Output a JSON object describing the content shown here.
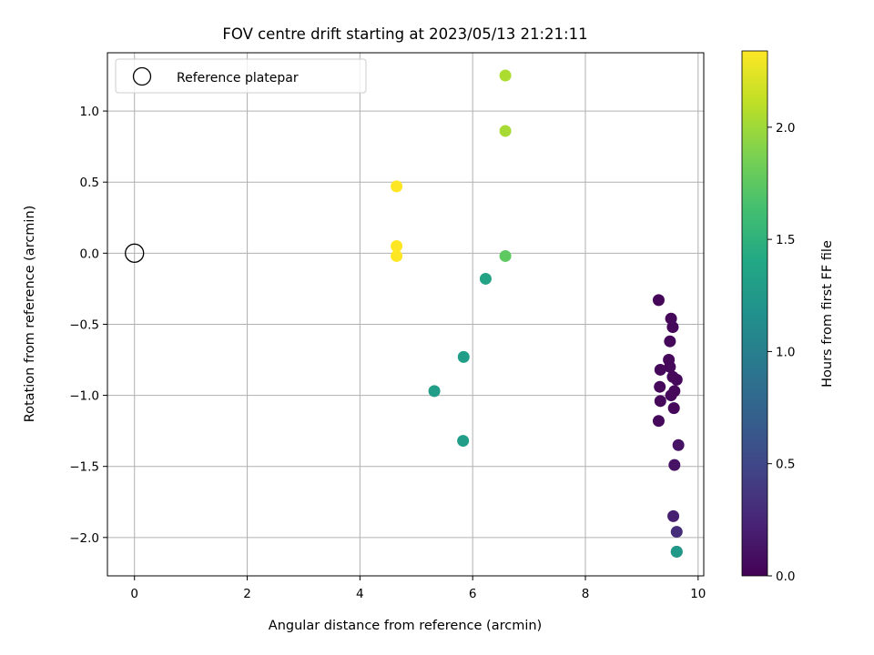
{
  "chart_data": {
    "type": "scatter",
    "title": "FOV centre drift starting at 2023/05/13 21:21:11",
    "xlabel": "Angular distance from reference (arcmin)",
    "ylabel": "Rotation from reference (arcmin)",
    "xlim": [
      -0.48,
      10.1
    ],
    "ylim": [
      -2.27,
      1.41
    ],
    "xticks": [
      0,
      2,
      4,
      6,
      8,
      10
    ],
    "xtick_labels": [
      "0",
      "2",
      "4",
      "6",
      "8",
      "10"
    ],
    "yticks": [
      1.0,
      0.5,
      0.0,
      -0.5,
      -1.0,
      -1.5,
      -2.0
    ],
    "ytick_labels": [
      "1.0",
      "0.5",
      "0.0",
      "−0.5",
      "−1.0",
      "−1.5",
      "−2.0"
    ],
    "grid": true,
    "legend": {
      "position": "top-left",
      "entries": [
        "Reference platepar"
      ]
    },
    "reference_point": {
      "x": 0,
      "y": 0,
      "label": "Reference platepar"
    },
    "colorbar": {
      "label": "Hours from first FF file",
      "colormap": "viridis",
      "range": [
        0.0,
        2.34
      ],
      "ticks": [
        0.0,
        0.5,
        1.0,
        1.5,
        2.0
      ],
      "tick_labels": [
        "0.0",
        "0.5",
        "1.0",
        "1.5",
        "2.0"
      ]
    },
    "points": [
      {
        "x": 9.3,
        "y": -0.33,
        "c": 0.03
      },
      {
        "x": 9.52,
        "y": -0.46,
        "c": 0.05
      },
      {
        "x": 9.55,
        "y": -0.52,
        "c": 0.05
      },
      {
        "x": 9.5,
        "y": -0.62,
        "c": 0.05
      },
      {
        "x": 9.48,
        "y": -0.75,
        "c": 0.05
      },
      {
        "x": 9.5,
        "y": -0.8,
        "c": 0.05
      },
      {
        "x": 9.33,
        "y": -0.82,
        "c": 0.05
      },
      {
        "x": 9.55,
        "y": -0.87,
        "c": 0.05
      },
      {
        "x": 9.62,
        "y": -0.89,
        "c": 0.05
      },
      {
        "x": 9.32,
        "y": -0.94,
        "c": 0.05
      },
      {
        "x": 9.58,
        "y": -0.97,
        "c": 0.05
      },
      {
        "x": 9.52,
        "y": -1.0,
        "c": 0.05
      },
      {
        "x": 9.33,
        "y": -1.04,
        "c": 0.05
      },
      {
        "x": 9.57,
        "y": -1.09,
        "c": 0.05
      },
      {
        "x": 9.3,
        "y": -1.18,
        "c": 0.05
      },
      {
        "x": 9.65,
        "y": -1.35,
        "c": 0.12
      },
      {
        "x": 9.58,
        "y": -1.49,
        "c": 0.12
      },
      {
        "x": 9.56,
        "y": -1.85,
        "c": 0.2
      },
      {
        "x": 9.62,
        "y": -1.96,
        "c": 0.3
      },
      {
        "x": 9.62,
        "y": -2.1,
        "c": 0.45
      },
      {
        "x": 9.62,
        "y": -2.1,
        "c": 1.25
      },
      {
        "x": 5.32,
        "y": -0.97,
        "c": 1.3
      },
      {
        "x": 5.83,
        "y": -1.32,
        "c": 1.3
      },
      {
        "x": 5.84,
        "y": -0.73,
        "c": 1.3
      },
      {
        "x": 6.23,
        "y": -0.18,
        "c": 1.35
      },
      {
        "x": 6.58,
        "y": -0.02,
        "c": 1.75
      },
      {
        "x": 6.58,
        "y": 0.86,
        "c": 2.03
      },
      {
        "x": 6.58,
        "y": 1.25,
        "c": 2.05
      },
      {
        "x": 4.65,
        "y": 0.47,
        "c": 2.34
      },
      {
        "x": 4.65,
        "y": 0.05,
        "c": 2.34
      },
      {
        "x": 4.65,
        "y": -0.02,
        "c": 2.34
      }
    ]
  }
}
